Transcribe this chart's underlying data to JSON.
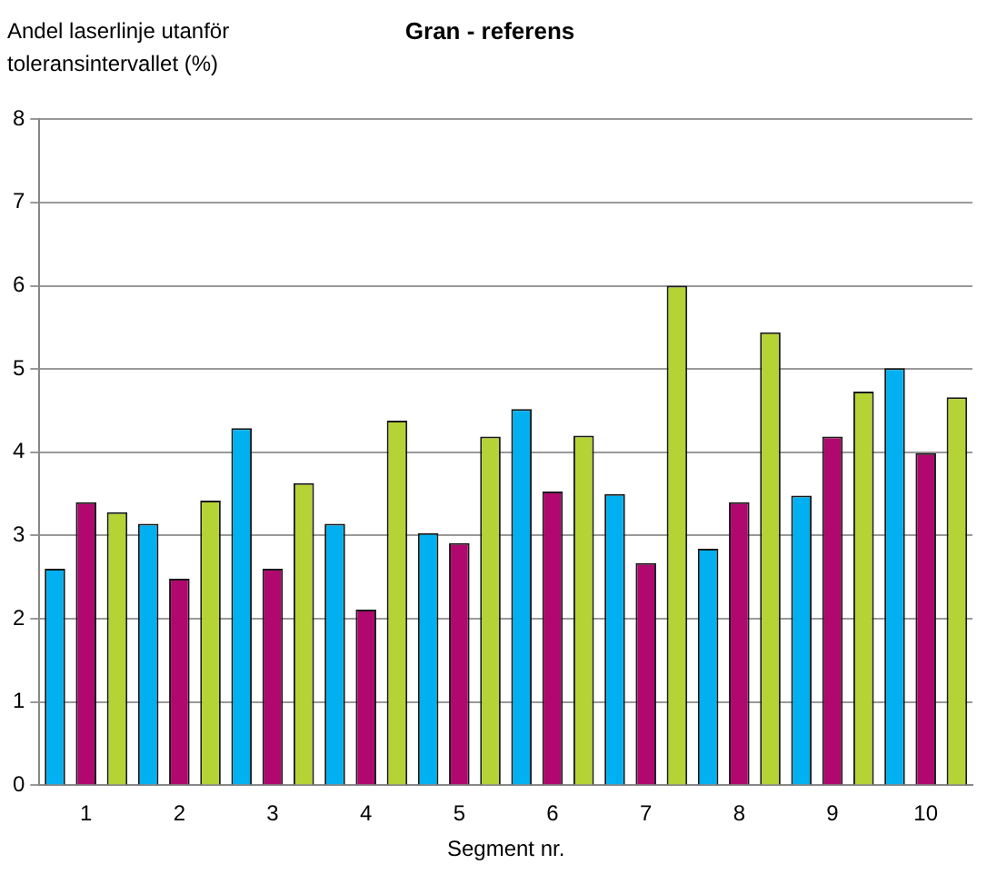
{
  "chart_data": {
    "type": "bar",
    "title": "Gran - referens",
    "ylabel": "Andel laserlinje utanför toleransintervallet (%)",
    "xlabel": "Segment nr.",
    "categories": [
      "1",
      "2",
      "3",
      "4",
      "5",
      "6",
      "7",
      "8",
      "9",
      "10"
    ],
    "series": [
      {
        "color": "#00b0f0",
        "values": [
          2.6,
          3.14,
          4.29,
          3.14,
          3.03,
          4.52,
          3.5,
          2.84,
          3.48,
          5.01
        ]
      },
      {
        "color": "#b0086e",
        "values": [
          3.4,
          2.48,
          2.6,
          2.11,
          2.91,
          3.53,
          2.67,
          3.4,
          4.19,
          3.99
        ]
      },
      {
        "color": "#b5d334",
        "values": [
          3.28,
          3.42,
          3.63,
          4.38,
          4.19,
          4.2,
          6.0,
          5.44,
          4.73,
          4.66
        ]
      }
    ],
    "ylim": [
      0,
      8
    ],
    "yticks": [
      0,
      1,
      2,
      3,
      4,
      5,
      6,
      7,
      8
    ],
    "grid": "y",
    "legend": false
  }
}
